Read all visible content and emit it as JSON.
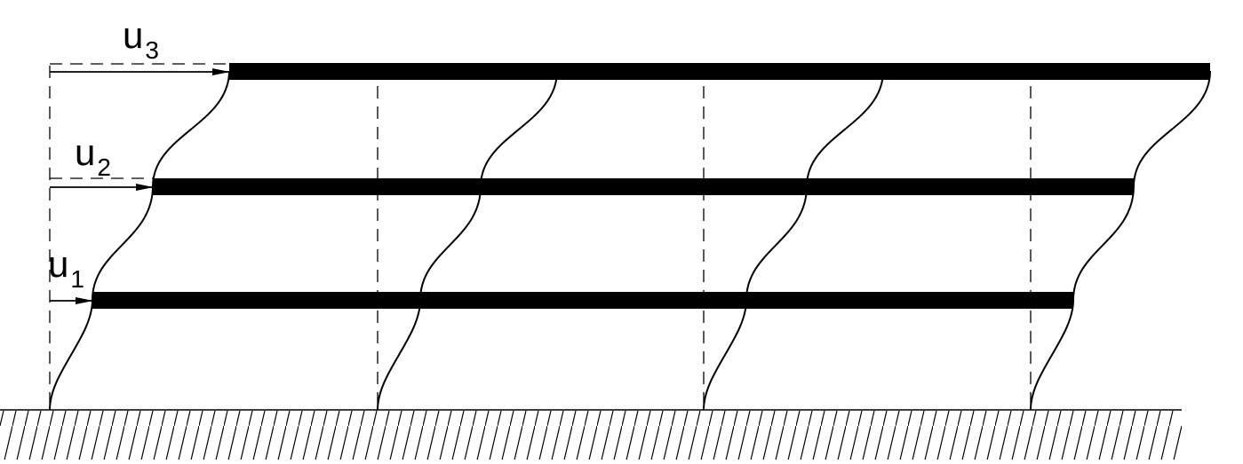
{
  "colors": {
    "ink": "#000000",
    "background": "#ffffff"
  },
  "labels": {
    "u1": {
      "base": "u",
      "sub": "1"
    },
    "u2": {
      "base": "u",
      "sub": "2"
    },
    "u3": {
      "base": "u",
      "sub": "3"
    }
  }
}
